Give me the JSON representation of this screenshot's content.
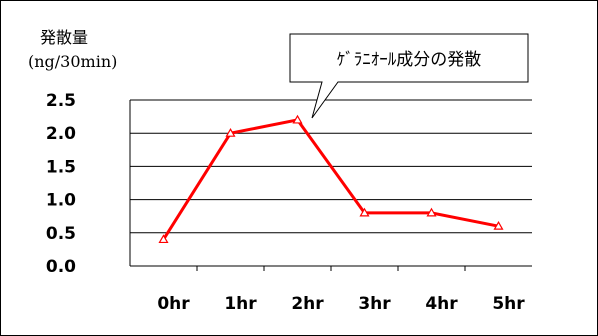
{
  "chart_data": {
    "type": "line",
    "ylabel": "発散量",
    "ylabel_unit": "(ng/30min)",
    "categories": [
      "0hr",
      "1hr",
      "2hr",
      "3hr",
      "4hr",
      "5hr"
    ],
    "series": [
      {
        "values": [
          0.4,
          2.0,
          2.2,
          0.8,
          0.8,
          0.6
        ],
        "color": "#ff0000",
        "marker": "triangle"
      }
    ],
    "yticks": [
      "0.0",
      "0.5",
      "1.0",
      "1.5",
      "2.0",
      "2.5"
    ],
    "ylim": [
      0,
      2.5
    ],
    "grid": true,
    "annotation": "ｹﾞﾗﾆｵｰﾙ成分の発散"
  }
}
